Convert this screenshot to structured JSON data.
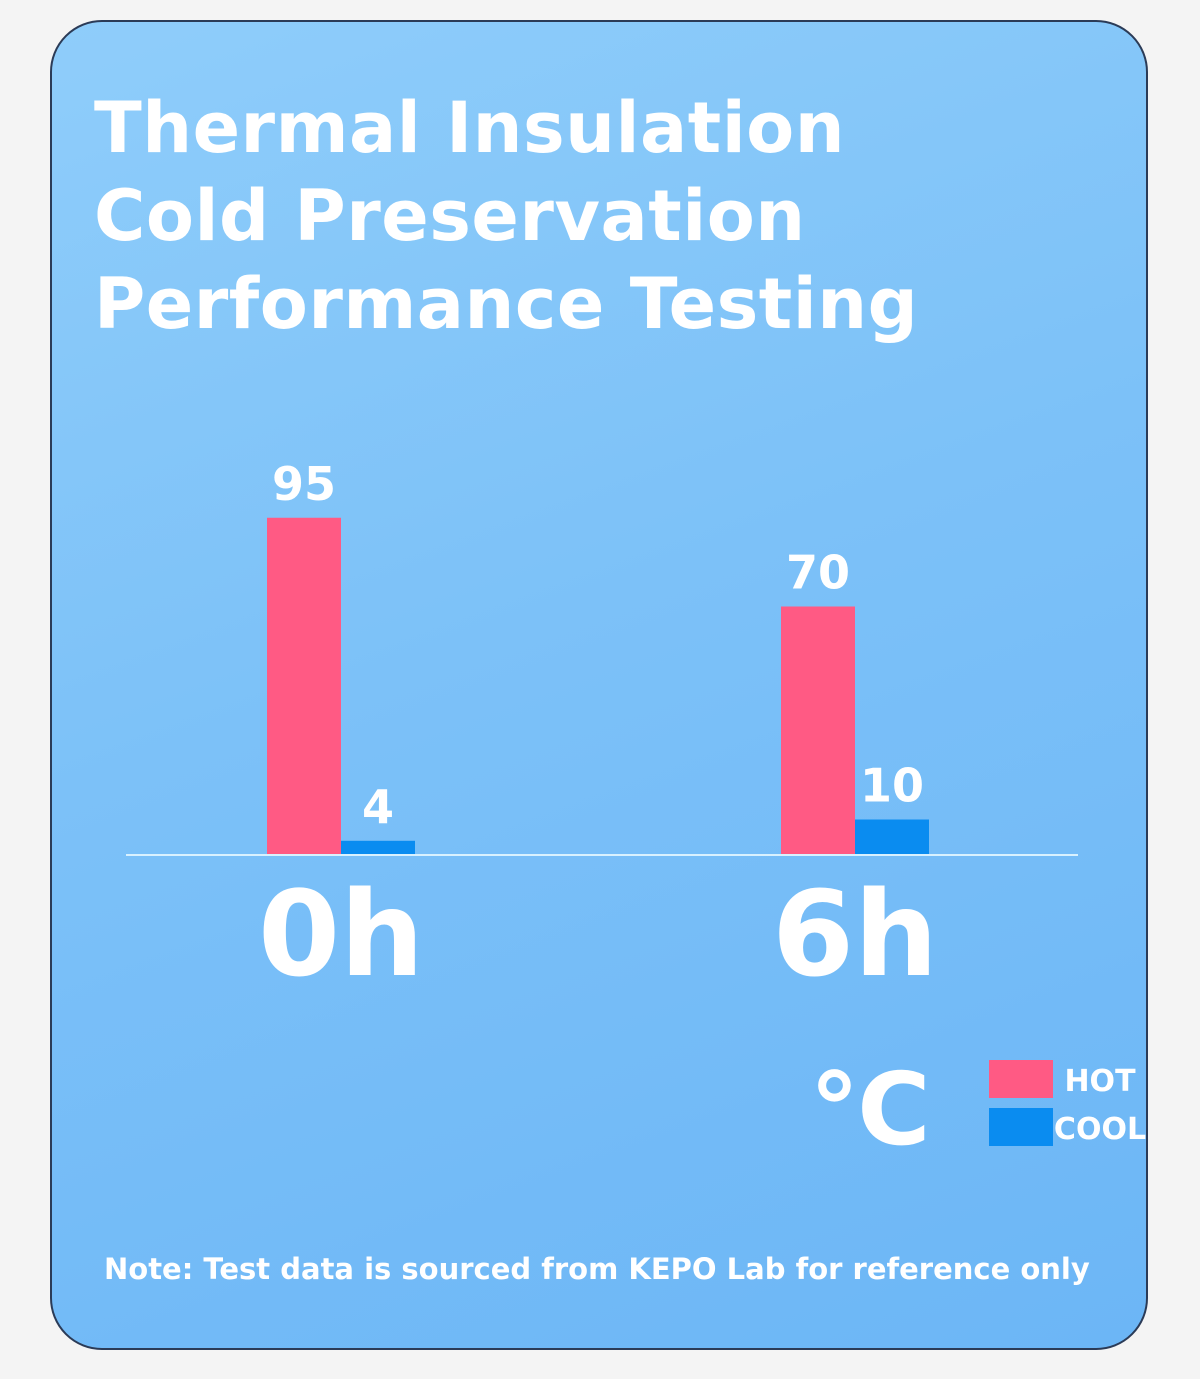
{
  "title_lines": [
    "Thermal Insulation",
    "Cold Preservation",
    "Performance Testing"
  ],
  "unit_label": "℃",
  "note": "Note: Test data is sourced from KEPO Lab for reference only",
  "colors": {
    "hot": "#ff5a84",
    "cool": "#0a8cf0",
    "axis": "#d8f1ff",
    "text": "#ffffff"
  },
  "chart_data": {
    "type": "bar",
    "title": "Thermal Insulation Cold Preservation Performance Testing",
    "categories": [
      "0h",
      "6h"
    ],
    "series": [
      {
        "name": "HOT",
        "values": [
          95,
          70
        ]
      },
      {
        "name": "COOL",
        "values": [
          4,
          10
        ]
      }
    ],
    "ylabel": "℃",
    "ylim": [
      0,
      100
    ],
    "grid": false,
    "legend": "bottom-right"
  }
}
